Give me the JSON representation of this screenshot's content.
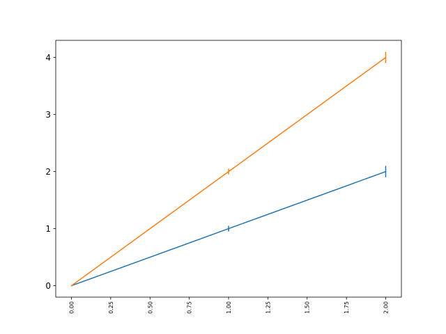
{
  "chart_data": {
    "type": "line",
    "title": "",
    "xlabel": "",
    "ylabel": "",
    "xlim": [
      -0.1,
      2.1
    ],
    "ylim": [
      -0.2,
      4.3
    ],
    "x_ticks": [
      "0.00",
      "0.25",
      "0.50",
      "0.75",
      "1.00",
      "1.25",
      "1.50",
      "1.75",
      "2.00"
    ],
    "y_ticks": [
      "0",
      "1",
      "2",
      "3",
      "4"
    ],
    "grid": false,
    "legend": false,
    "series": [
      {
        "color": "#1f77b4",
        "x": [
          0,
          1,
          2
        ],
        "y": [
          0,
          1,
          2
        ],
        "yerr": [
          0,
          0.05,
          0.1
        ]
      },
      {
        "color": "#ff7f0e",
        "x": [
          0,
          1,
          2
        ],
        "y": [
          0,
          2,
          4
        ],
        "yerr": [
          0,
          0.05,
          0.1
        ]
      }
    ]
  }
}
